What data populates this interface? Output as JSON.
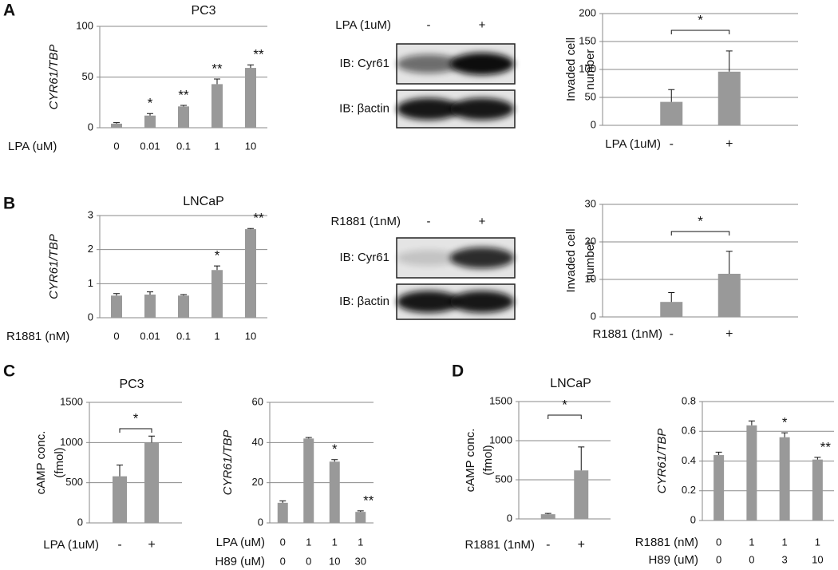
{
  "panels": [
    "A",
    "B",
    "C",
    "D"
  ],
  "blots": [
    {
      "treatment_label": "LPA (1uM)",
      "lanes": [
        "-",
        "+"
      ],
      "rows": [
        "IB: Cyr61",
        "IB: βactin"
      ]
    },
    {
      "treatment_label": "R1881 (1nM)",
      "lanes": [
        "-",
        "+"
      ],
      "rows": [
        "IB: Cyr61",
        "IB: βactin"
      ]
    }
  ],
  "chart_data": [
    {
      "type": "bar",
      "title": "PC3",
      "ylabel": "CYR61/TBP",
      "ylabel_italic": true,
      "xlabel": "LPA (uM)",
      "categories": [
        "0",
        "0.01",
        "0.1",
        "1",
        "10"
      ],
      "values": [
        4,
        12,
        21,
        43,
        59
      ],
      "errors": [
        1,
        2,
        1,
        5,
        3
      ],
      "significance": [
        null,
        "*",
        "**",
        "**",
        "**"
      ],
      "color": "#999999",
      "ylim": [
        0,
        100
      ],
      "yticks": [
        0,
        50,
        100
      ],
      "grid": true
    },
    {
      "type": "bar",
      "ylabel": [
        "Invaded cell",
        "number"
      ],
      "ylabel_italic": false,
      "xlabel": "LPA (1uM)",
      "categories": [
        "-",
        "+"
      ],
      "values": [
        42,
        96
      ],
      "errors": [
        22,
        37
      ],
      "bracket": "*",
      "color": "#999999",
      "ylim": [
        0,
        200
      ],
      "yticks": [
        0,
        50,
        100,
        150,
        200
      ],
      "grid": true
    },
    {
      "type": "bar",
      "title": "LNCaP",
      "ylabel": "CYR61/TBP",
      "ylabel_italic": true,
      "xlabel": "R1881 (nM)",
      "categories": [
        "0",
        "0.01",
        "0.1",
        "1",
        "10"
      ],
      "values": [
        0.65,
        0.68,
        0.65,
        1.4,
        2.6
      ],
      "errors": [
        0.06,
        0.08,
        0.03,
        0.12,
        0.02
      ],
      "significance": [
        null,
        null,
        null,
        "*",
        "**"
      ],
      "color": "#999999",
      "ylim": [
        0,
        3
      ],
      "yticks": [
        0,
        1,
        2,
        3
      ],
      "grid": true
    },
    {
      "type": "bar",
      "ylabel": [
        "Invaded cell",
        "number"
      ],
      "ylabel_italic": false,
      "xlabel": "R1881 (1nM)",
      "categories": [
        "-",
        "+"
      ],
      "values": [
        4,
        11.5
      ],
      "errors": [
        2.5,
        6
      ],
      "bracket": "*",
      "color": "#999999",
      "ylim": [
        0,
        30
      ],
      "yticks": [
        0,
        10,
        20,
        30
      ],
      "grid": true
    },
    {
      "type": "bar",
      "title": "PC3",
      "ylabel": [
        "cAMP conc.",
        "(fmol)"
      ],
      "ylabel_italic": false,
      "xlabel": "LPA (1uM)",
      "categories": [
        "-",
        "+"
      ],
      "values": [
        580,
        1000
      ],
      "errors": [
        140,
        80
      ],
      "bracket": "*",
      "color": "#999999",
      "ylim": [
        0,
        1500
      ],
      "yticks": [
        0,
        500,
        1000,
        1500
      ],
      "grid": true
    },
    {
      "type": "bar",
      "ylabel": "CYR61/TBP",
      "ylabel_italic": true,
      "xlabel": "LPA (uM)",
      "categories": [
        "0",
        "1",
        "1",
        "1"
      ],
      "second_row": {
        "label": "H89 (uM)",
        "categories": [
          "0",
          "0",
          "10",
          "30"
        ]
      },
      "values": [
        10,
        42,
        30.5,
        5.5
      ],
      "errors": [
        1,
        0.5,
        1,
        0.5
      ],
      "significance": [
        null,
        null,
        "*",
        "**"
      ],
      "color": "#999999",
      "ylim": [
        0,
        60
      ],
      "yticks": [
        0,
        20,
        40,
        60
      ],
      "grid": true
    },
    {
      "type": "bar",
      "title": "LNCaP",
      "ylabel": [
        "cAMP conc.",
        "(fmol)"
      ],
      "ylabel_italic": false,
      "xlabel": "R1881 (1nM)",
      "categories": [
        "-",
        "+"
      ],
      "values": [
        60,
        620
      ],
      "errors": [
        10,
        300
      ],
      "bracket": "*",
      "color": "#999999",
      "ylim": [
        0,
        1500
      ],
      "yticks": [
        0,
        500,
        1000,
        1500
      ],
      "grid": true
    },
    {
      "type": "bar",
      "ylabel": "CYR61/TBP",
      "ylabel_italic": true,
      "xlabel": "R1881 (nM)",
      "categories": [
        "0",
        "1",
        "1",
        "1"
      ],
      "second_row": {
        "label": "H89 (uM)",
        "categories": [
          "0",
          "0",
          "3",
          "10"
        ]
      },
      "values": [
        0.44,
        0.64,
        0.56,
        0.41
      ],
      "errors": [
        0.02,
        0.03,
        0.03,
        0.015
      ],
      "significance": [
        null,
        null,
        "*",
        "**"
      ],
      "color": "#999999",
      "ylim": [
        0,
        0.8
      ],
      "yticks": [
        0,
        0.2,
        0.4,
        0.6,
        0.8
      ],
      "grid": true
    }
  ]
}
